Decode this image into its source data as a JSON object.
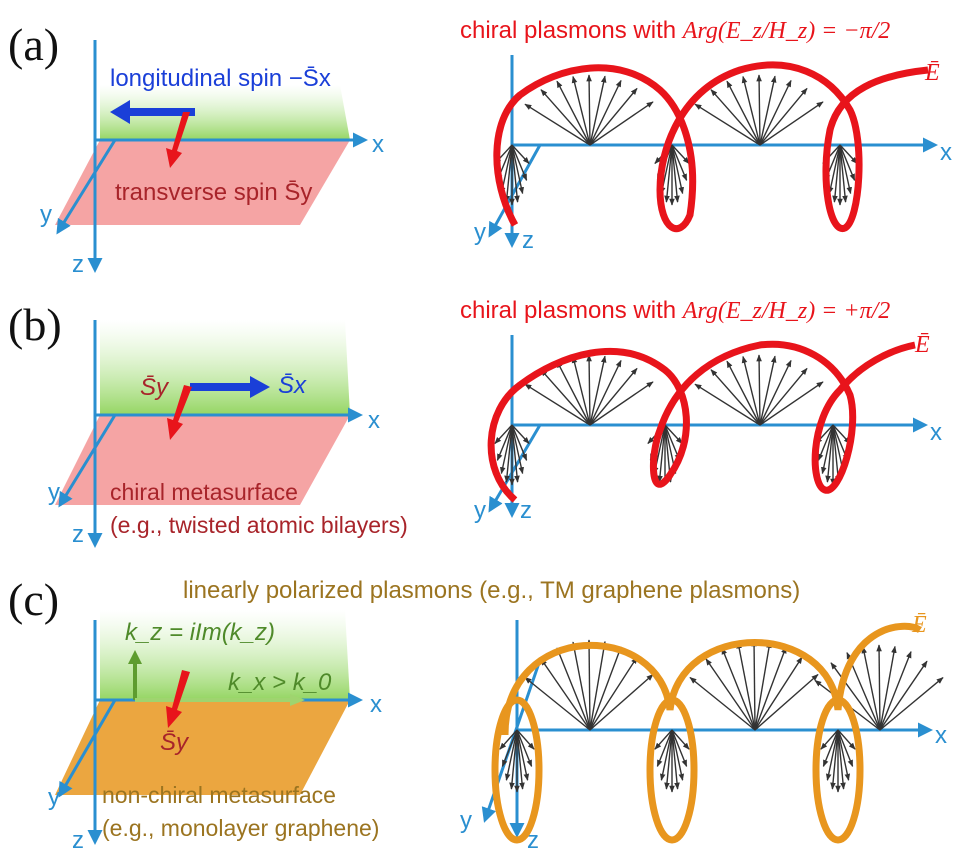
{
  "colors": {
    "axis": "#2a8fd0",
    "red": "#e8141b",
    "orange": "#e8961e",
    "blue": "#1a3fd8",
    "green_text": "#4f8a2a",
    "olive_text": "#9b7420",
    "dark_red_text": "#a8242a",
    "arrow": "#222222"
  },
  "panels": [
    {
      "id": "a",
      "label": "(a)",
      "title_text": "chiral plasmons with ",
      "title_math": "Arg(E_z/H_z) = −π/2",
      "left": {
        "spin_top": "longitudinal spin −S̄x",
        "spin_bottom": "transverse spin S̄y"
      },
      "field_label": "Ē",
      "axes": {
        "x": "x",
        "y": "y",
        "z": "z"
      }
    },
    {
      "id": "b",
      "label": "(b)",
      "title_text": "chiral plasmons with ",
      "title_math": "Arg(E_z/H_z) = +π/2",
      "left": {
        "spin_a": "S̄y",
        "spin_b": "S̄x",
        "caption_1": "chiral metasurface",
        "caption_2": "(e.g., twisted atomic bilayers)"
      },
      "field_label": "Ē",
      "axes": {
        "x": "x",
        "y": "y",
        "z": "z"
      }
    },
    {
      "id": "c",
      "label": "(c)",
      "title_text": "linearly polarized plasmons (e.g., TM graphene plasmons)",
      "left": {
        "kz": "k_z = iIm(k_z)",
        "kx": "k_x > k_0",
        "spin": "S̄y",
        "caption_1": "non-chiral metasurface",
        "caption_2": "(e.g., monolayer graphene)"
      },
      "field_label": "Ē",
      "axes": {
        "x": "x",
        "y": "y",
        "z": "z"
      }
    }
  ]
}
